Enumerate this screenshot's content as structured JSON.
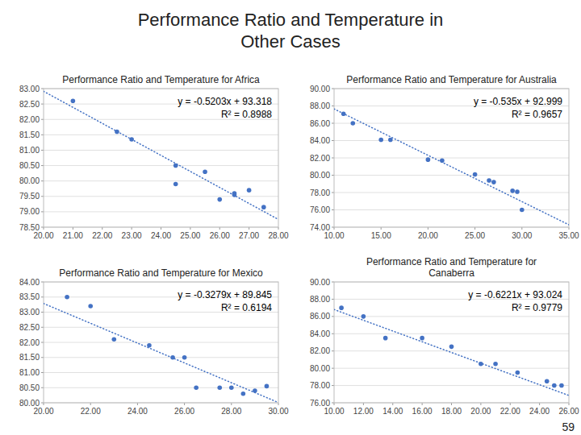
{
  "title": "Performance Ratio and Temperature in\nOther Cases",
  "annotations": [
    "59"
  ],
  "chart_data": [
    {
      "type": "scatter",
      "title": "Performance Ratio and Temperature for Africa",
      "series": [
        {
          "type": "scatter",
          "marker": "circle",
          "color": "#4472C4",
          "x": [
            21.0,
            22.5,
            23.0,
            24.5,
            24.5,
            25.5,
            26.0,
            26.5,
            26.5,
            27.0,
            27.5
          ],
          "values": [
            82.6,
            81.6,
            81.35,
            80.5,
            79.9,
            80.3,
            79.4,
            79.55,
            79.6,
            79.7,
            79.15
          ]
        },
        {
          "type": "line",
          "line_style": "dotted",
          "color": "#4472C4",
          "x": [
            20.0,
            28.0
          ],
          "values": [
            82.912,
            78.7496
          ]
        }
      ],
      "annotations": [
        "y = -0.5203x + 93.318",
        "R² = 0.8988"
      ],
      "xlim": [
        20.0,
        28.0
      ],
      "ylim": [
        78.5,
        83.0
      ],
      "xticks": [
        {
          "value": 20.0,
          "label": "20.00"
        },
        {
          "value": 21.0,
          "label": "21.00"
        },
        {
          "value": 22.0,
          "label": "22.00"
        },
        {
          "value": 23.0,
          "label": "23.00"
        },
        {
          "value": 24.0,
          "label": "24.00"
        },
        {
          "value": 25.0,
          "label": "25.00"
        },
        {
          "value": 26.0,
          "label": "26.00"
        },
        {
          "value": 27.0,
          "label": "27.00"
        },
        {
          "value": 28.0,
          "label": "28.00"
        }
      ],
      "yticks": [
        {
          "value": 78.5,
          "label": "78.50"
        },
        {
          "value": 79.0,
          "label": "79.00"
        },
        {
          "value": 79.5,
          "label": "79.50"
        },
        {
          "value": 80.0,
          "label": "80.00"
        },
        {
          "value": 80.5,
          "label": "80.50"
        },
        {
          "value": 81.0,
          "label": "81.00"
        },
        {
          "value": 81.5,
          "label": "81.50"
        },
        {
          "value": 82.0,
          "label": "82.00"
        },
        {
          "value": 82.5,
          "label": "82.50"
        },
        {
          "value": 83.0,
          "label": "83.00"
        }
      ],
      "grid": "y"
    },
    {
      "type": "scatter",
      "title": "Performance Ratio and Temperature for Australia",
      "series": [
        {
          "type": "scatter",
          "marker": "circle",
          "color": "#4472C4",
          "x": [
            11.0,
            12.0,
            15.0,
            16.0,
            20.0,
            21.5,
            25.0,
            26.5,
            27.0,
            29.0,
            29.5,
            30.0
          ],
          "values": [
            87.1,
            86.0,
            84.1,
            84.1,
            81.8,
            81.7,
            80.1,
            79.4,
            79.2,
            78.2,
            78.1,
            76.0
          ]
        },
        {
          "type": "line",
          "line_style": "dotted",
          "color": "#4472C4",
          "x": [
            10.0,
            35.0
          ],
          "values": [
            87.649,
            74.274
          ]
        }
      ],
      "annotations": [
        "y = -0.535x + 92.999",
        "R² = 0.9657"
      ],
      "xlim": [
        10.0,
        35.0
      ],
      "ylim": [
        74.0,
        90.0
      ],
      "xticks": [
        {
          "value": 10.0,
          "label": "10.00"
        },
        {
          "value": 15.0,
          "label": "15.00"
        },
        {
          "value": 20.0,
          "label": "20.00"
        },
        {
          "value": 25.0,
          "label": "25.00"
        },
        {
          "value": 30.0,
          "label": "30.00"
        },
        {
          "value": 35.0,
          "label": "35.00"
        }
      ],
      "yticks": [
        {
          "value": 74.0,
          "label": "74.00"
        },
        {
          "value": 76.0,
          "label": "76.00"
        },
        {
          "value": 78.0,
          "label": "78.00"
        },
        {
          "value": 80.0,
          "label": "80.00"
        },
        {
          "value": 82.0,
          "label": "82.00"
        },
        {
          "value": 84.0,
          "label": "84.00"
        },
        {
          "value": 86.0,
          "label": "86.00"
        },
        {
          "value": 88.0,
          "label": "88.00"
        },
        {
          "value": 90.0,
          "label": "90.00"
        }
      ],
      "grid": "y"
    },
    {
      "type": "scatter",
      "title": "Performance Ratio and Temperature for Mexico",
      "series": [
        {
          "type": "scatter",
          "marker": "circle",
          "color": "#4472C4",
          "x": [
            21.0,
            22.0,
            23.0,
            24.5,
            25.5,
            26.0,
            26.5,
            27.5,
            28.0,
            28.5,
            29.0,
            29.5
          ],
          "values": [
            83.5,
            83.2,
            82.1,
            81.9,
            81.5,
            81.5,
            80.5,
            80.5,
            80.5,
            80.3,
            80.4,
            80.55
          ]
        },
        {
          "type": "line",
          "line_style": "dotted",
          "color": "#4472C4",
          "x": [
            20.0,
            30.0
          ],
          "values": [
            83.287,
            80.008
          ]
        }
      ],
      "annotations": [
        "y = -0.3279x + 89.845",
        "R² = 0.6194"
      ],
      "xlim": [
        20.0,
        30.0
      ],
      "ylim": [
        80.0,
        84.0
      ],
      "xticks": [
        {
          "value": 20.0,
          "label": "20.00"
        },
        {
          "value": 22.0,
          "label": "22.00"
        },
        {
          "value": 24.0,
          "label": "24.00"
        },
        {
          "value": 26.0,
          "label": "26.00"
        },
        {
          "value": 28.0,
          "label": "28.00"
        },
        {
          "value": 30.0,
          "label": "30.00"
        }
      ],
      "yticks": [
        {
          "value": 80.0,
          "label": "80.00"
        },
        {
          "value": 80.5,
          "label": "80.50"
        },
        {
          "value": 81.0,
          "label": "81.00"
        },
        {
          "value": 81.5,
          "label": "81.50"
        },
        {
          "value": 82.0,
          "label": "82.00"
        },
        {
          "value": 82.5,
          "label": "82.50"
        },
        {
          "value": 83.0,
          "label": "83.00"
        },
        {
          "value": 83.5,
          "label": "83.50"
        },
        {
          "value": 84.0,
          "label": "84.00"
        }
      ],
      "grid": "y"
    },
    {
      "type": "scatter",
      "title": "Performance Ratio and Temperature for\nCanaberra",
      "series": [
        {
          "type": "scatter",
          "marker": "circle",
          "color": "#4472C4",
          "x": [
            10.5,
            12.0,
            13.5,
            16.0,
            18.0,
            20.0,
            21.0,
            22.5,
            24.5,
            25.0,
            25.5
          ],
          "values": [
            87.0,
            86.0,
            83.5,
            83.5,
            82.5,
            80.5,
            80.5,
            79.5,
            78.5,
            78.0,
            78.0
          ]
        },
        {
          "type": "line",
          "line_style": "dotted",
          "color": "#4472C4",
          "x": [
            10.0,
            26.0
          ],
          "values": [
            86.803,
            76.8494
          ]
        }
      ],
      "annotations": [
        "y = -0.6221x + 93.024",
        "R² = 0.9779"
      ],
      "xlim": [
        10.0,
        26.0
      ],
      "ylim": [
        76.0,
        90.0
      ],
      "xticks": [
        {
          "value": 10.0,
          "label": "10.00"
        },
        {
          "value": 12.0,
          "label": "12.00"
        },
        {
          "value": 14.0,
          "label": "14.00"
        },
        {
          "value": 16.0,
          "label": "16.00"
        },
        {
          "value": 18.0,
          "label": "18.00"
        },
        {
          "value": 20.0,
          "label": "20.00"
        },
        {
          "value": 22.0,
          "label": "22.00"
        },
        {
          "value": 24.0,
          "label": "24.00"
        },
        {
          "value": 26.0,
          "label": "26.00"
        }
      ],
      "yticks": [
        {
          "value": 76.0,
          "label": "76.00"
        },
        {
          "value": 78.0,
          "label": "78.00"
        },
        {
          "value": 80.0,
          "label": "80.00"
        },
        {
          "value": 82.0,
          "label": "82.00"
        },
        {
          "value": 84.0,
          "label": "84.00"
        },
        {
          "value": 86.0,
          "label": "86.00"
        },
        {
          "value": 88.0,
          "label": "88.00"
        },
        {
          "value": 90.0,
          "label": "90.00"
        }
      ],
      "grid": "y"
    }
  ]
}
